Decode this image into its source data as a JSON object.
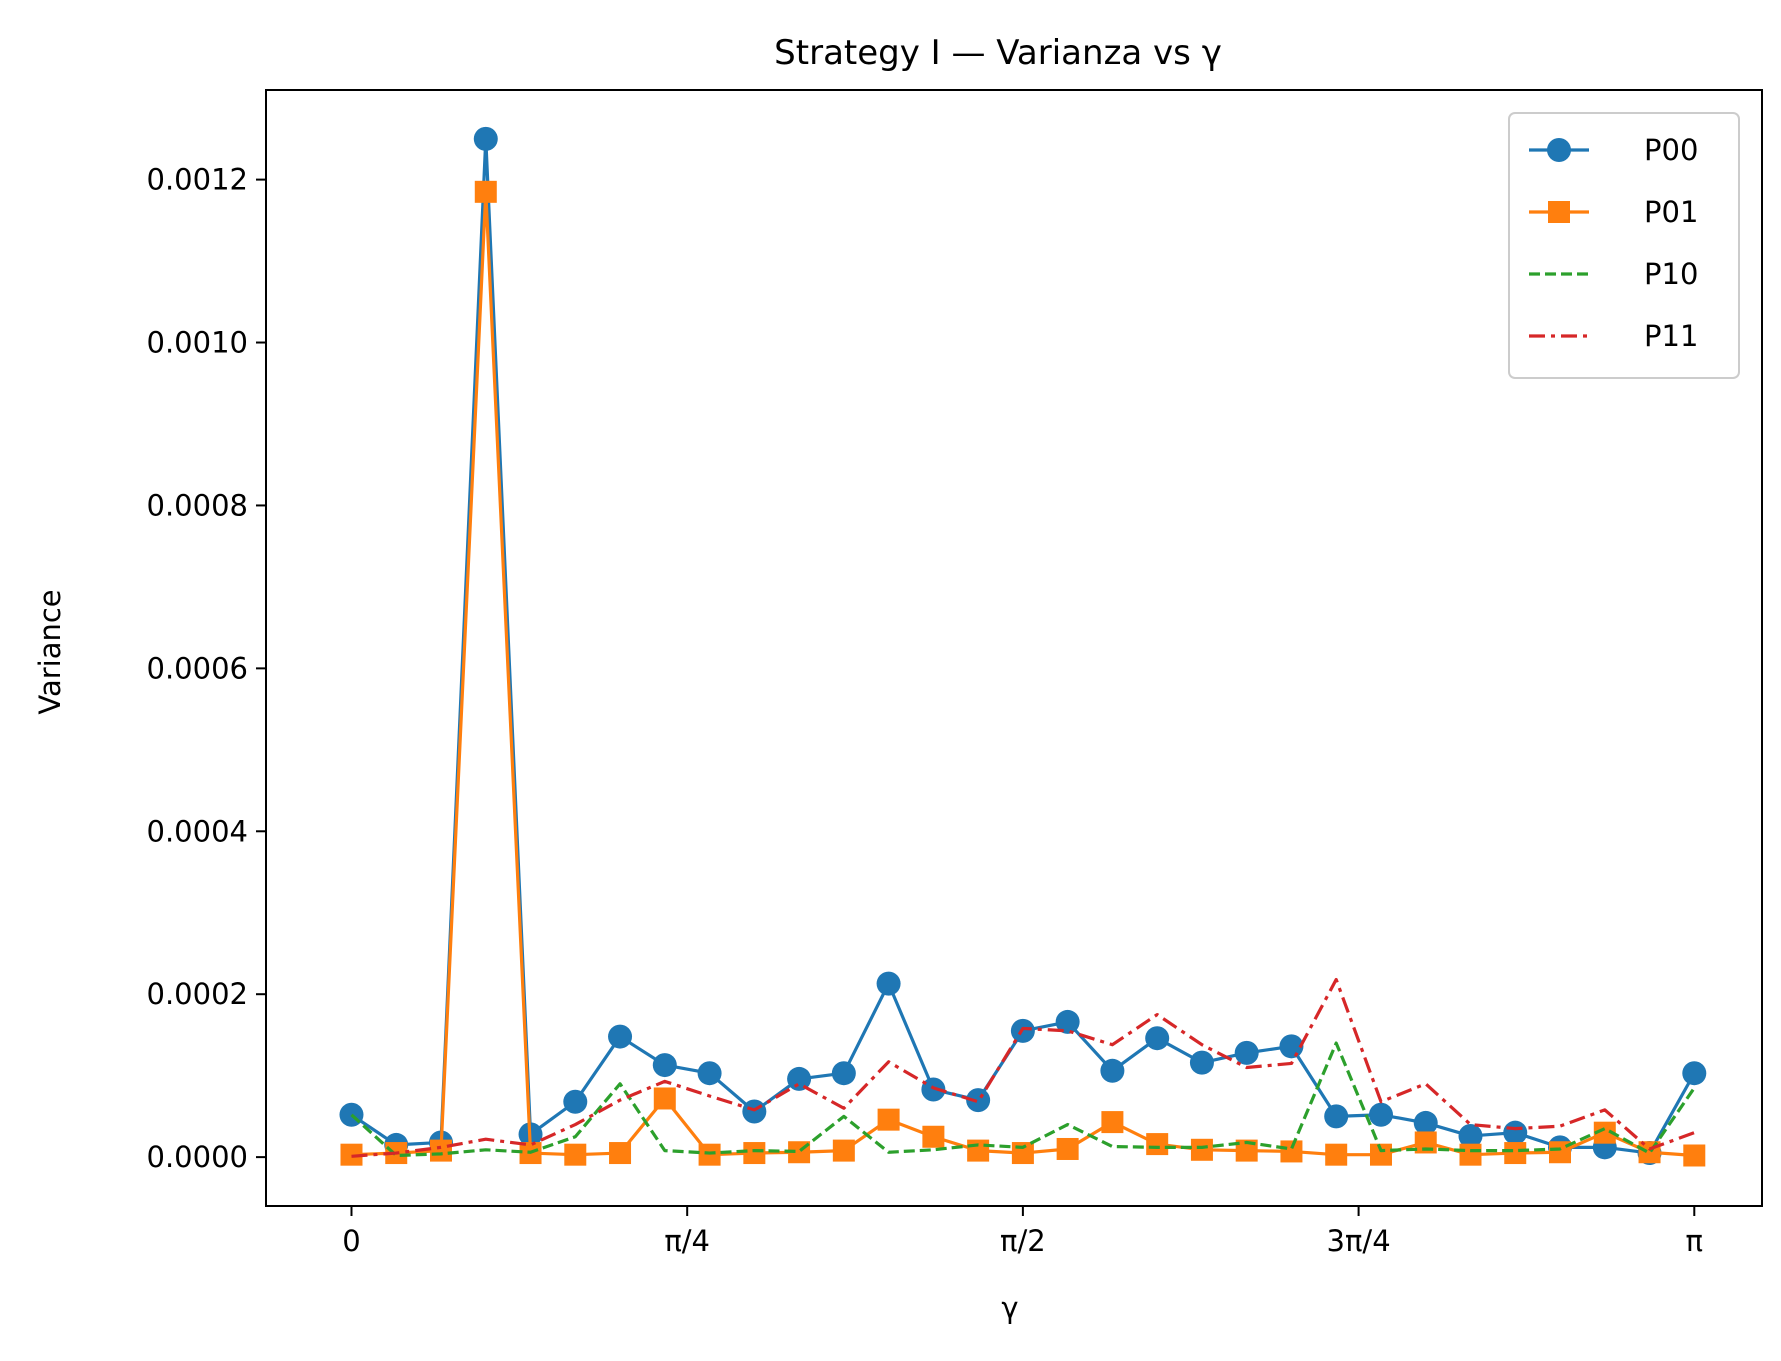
{
  "chart_data": {
    "type": "line",
    "title": "Strategy I — Varianza vs γ",
    "xlabel": "γ",
    "ylabel": "Variance",
    "xlim": [
      -0.2,
      3.3
    ],
    "ylim": [
      -6e-05,
      0.00131
    ],
    "xticks": [
      {
        "value": 0,
        "label": "0"
      },
      {
        "value": 0.7853981634,
        "label": "π/4"
      },
      {
        "value": 1.5707963268,
        "label": "π/2"
      },
      {
        "value": 2.3561944902,
        "label": "3π/4"
      },
      {
        "value": 3.1415926536,
        "label": "π"
      }
    ],
    "yticks": [
      {
        "value": 0.0,
        "label": "0.0000"
      },
      {
        "value": 0.0002,
        "label": "0.0002"
      },
      {
        "value": 0.0004,
        "label": "0.0004"
      },
      {
        "value": 0.0006,
        "label": "0.0006"
      },
      {
        "value": 0.0008,
        "label": "0.0008"
      },
      {
        "value": 0.001,
        "label": "0.0010"
      },
      {
        "value": 0.0012,
        "label": "0.0012"
      }
    ],
    "grid": false,
    "legend_position": "top-right",
    "x": [
      0.0,
      0.1047,
      0.2094,
      0.3142,
      0.4189,
      0.5236,
      0.6283,
      0.733,
      0.8378,
      0.9425,
      1.0472,
      1.1519,
      1.2566,
      1.3614,
      1.4661,
      1.5708,
      1.6755,
      1.7802,
      1.885,
      1.9897,
      2.0944,
      2.1991,
      2.3038,
      2.4086,
      2.5133,
      2.618,
      2.7227,
      2.8274,
      2.9322,
      3.0369,
      3.1416
    ],
    "series": [
      {
        "name": "P00",
        "color": "#1f77b4",
        "style": "solid",
        "marker": "circle",
        "values": [
          5.2e-05,
          1.5e-05,
          1.8e-05,
          0.00125,
          2.8e-05,
          6.8e-05,
          0.000148,
          0.000113,
          0.000103,
          5.6e-05,
          9.6e-05,
          0.000103,
          0.000213,
          8.3e-05,
          7e-05,
          0.000155,
          0.000166,
          0.000106,
          0.000146,
          0.000116,
          0.000128,
          0.000136,
          5e-05,
          5.2e-05,
          4.2e-05,
          2.6e-05,
          3e-05,
          1.2e-05,
          1.2e-05,
          5e-06,
          0.000103
        ]
      },
      {
        "name": "P01",
        "color": "#ff7f0e",
        "style": "solid",
        "marker": "square",
        "values": [
          3e-06,
          5e-06,
          8e-06,
          0.001185,
          5e-06,
          3e-06,
          5e-06,
          7.2e-05,
          3e-06,
          5e-06,
          6e-06,
          8e-06,
          4.6e-05,
          2.5e-05,
          8e-06,
          5e-06,
          1e-05,
          4.3e-05,
          1.6e-05,
          9e-06,
          8e-06,
          7e-06,
          3e-06,
          3e-06,
          1.8e-05,
          3e-06,
          5e-06,
          6e-06,
          3e-05,
          6e-06,
          2e-06
        ]
      },
      {
        "name": "P10",
        "color": "#2ca02c",
        "style": "dashed",
        "marker": "none",
        "values": [
          5.2e-05,
          2e-06,
          4e-06,
          9e-06,
          6e-06,
          2.5e-05,
          9e-05,
          8e-06,
          5e-06,
          8e-06,
          7e-06,
          5e-05,
          6e-06,
          9e-06,
          1.5e-05,
          1.2e-05,
          4e-05,
          1.3e-05,
          1.2e-05,
          1.2e-05,
          1.8e-05,
          1e-05,
          0.00014,
          8e-06,
          1e-05,
          8e-06,
          8e-06,
          1e-05,
          3.5e-05,
          5e-06,
          8.5e-05
        ]
      },
      {
        "name": "P11",
        "color": "#d62728",
        "style": "dashdot",
        "marker": "none",
        "values": [
          1e-06,
          5e-06,
          1.2e-05,
          2.2e-05,
          1.5e-05,
          4e-05,
          7e-05,
          9.3e-05,
          7.5e-05,
          5.8e-05,
          9e-05,
          6e-05,
          0.000117,
          8.5e-05,
          6.8e-05,
          0.000158,
          0.000155,
          0.000138,
          0.000175,
          0.000138,
          0.00011,
          0.000115,
          0.000218,
          6.8e-05,
          9e-05,
          4e-05,
          3.5e-05,
          3.8e-05,
          5.8e-05,
          1e-05,
          3e-05
        ]
      }
    ]
  }
}
